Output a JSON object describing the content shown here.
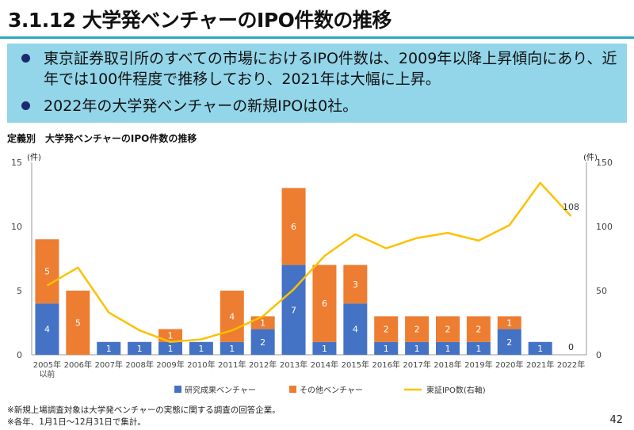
{
  "slide": {
    "title": "3.1.12 大学発ベンチャーのIPO件数の推移",
    "page_number": "42"
  },
  "summary": {
    "bullets": [
      "東京証券取引所のすべての市場におけるIPO件数は、2009年以降上昇傾向にあり、近年では100件程度で推移しており、2021年は大幅に上昇。",
      "2022年の大学発ベンチャーの新規IPOは0社。"
    ]
  },
  "chart_title": "定義別　大学発ベンチャーのIPO件数の推移",
  "chart_data": {
    "type": "bar",
    "stacked": true,
    "categories": [
      "2005年以前",
      "2006年",
      "2007年",
      "2008年",
      "2009年",
      "2010年",
      "2011年",
      "2012年",
      "2013年",
      "2014年",
      "2015年",
      "2016年",
      "2017年",
      "2018年",
      "2019年",
      "2020年",
      "2021年",
      "2022年"
    ],
    "category_labels": [
      [
        "2005年",
        "以前"
      ],
      [
        "2006年"
      ],
      [
        "2007年"
      ],
      [
        "2008年"
      ],
      [
        "2009年"
      ],
      [
        "2010年"
      ],
      [
        "2011年"
      ],
      [
        "2012年"
      ],
      [
        "2013年"
      ],
      [
        "2014年"
      ],
      [
        "2015年"
      ],
      [
        "2016年"
      ],
      [
        "2017年"
      ],
      [
        "2018年"
      ],
      [
        "2019年"
      ],
      [
        "2020年"
      ],
      [
        "2021年"
      ],
      [
        "2022年"
      ]
    ],
    "series": [
      {
        "name": "研究成果ベンチャー",
        "color": "#4472c4",
        "axis": "left",
        "values": [
          4,
          0,
          1,
          1,
          1,
          1,
          1,
          2,
          7,
          1,
          4,
          1,
          1,
          1,
          1,
          2,
          1,
          0
        ]
      },
      {
        "name": "その他ベンチャー",
        "color": "#ed7d31",
        "axis": "left",
        "values": [
          5,
          5,
          0,
          0,
          1,
          0,
          4,
          1,
          6,
          6,
          3,
          2,
          2,
          2,
          2,
          1,
          0,
          0
        ]
      },
      {
        "name": "東証IPO数(右軸)",
        "color": "#ffc000",
        "type": "line",
        "axis": "right",
        "values": [
          54,
          68,
          33,
          19,
          10,
          12,
          19,
          30,
          51,
          77,
          94,
          83,
          91,
          95,
          89,
          101,
          134,
          108
        ]
      }
    ],
    "left_axis": {
      "unit": "(件)",
      "min": 0,
      "max": 15,
      "ticks": [
        0,
        5,
        10,
        15
      ]
    },
    "right_axis": {
      "unit": "(件)",
      "min": 0,
      "max": 150,
      "ticks": [
        0,
        50,
        100,
        150
      ]
    },
    "annotations": [
      {
        "category": "2022年",
        "text": "108",
        "series": "東証IPO数(右軸)"
      },
      {
        "category": "2022年",
        "text": "0",
        "series": "研究成果ベンチャー"
      }
    ],
    "legend_position": "bottom"
  },
  "notes": [
    "※新規上場調査対象は大学発ベンチャーの実態に関する調査の回答企業。",
    "※各年、1月1日～12月31日で集計。"
  ]
}
